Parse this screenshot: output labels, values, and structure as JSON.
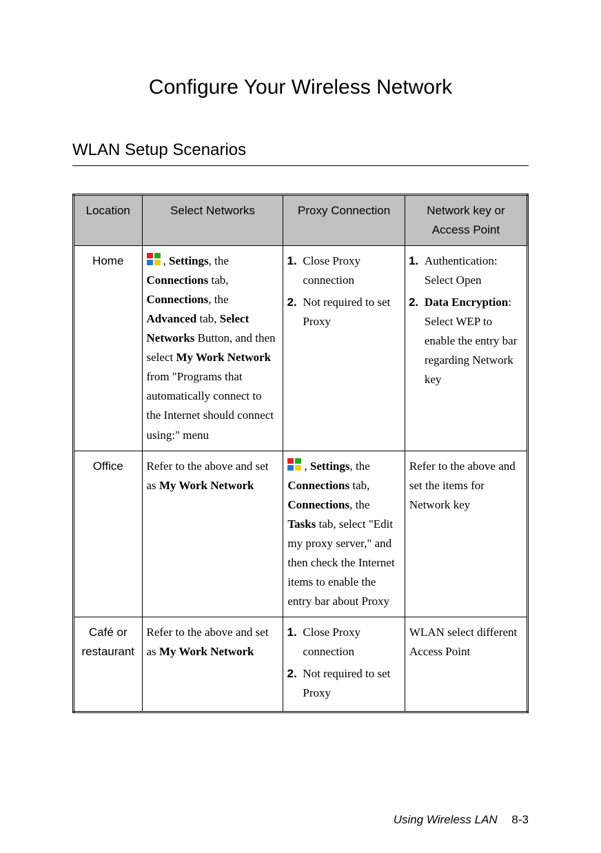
{
  "page": {
    "title": "Configure Your Wireless Network",
    "subtitle": "WLAN Setup Scenarios",
    "footer_text": "Using Wireless LAN",
    "footer_page": "8-3"
  },
  "table": {
    "headers": {
      "location": "Location",
      "select_networks": "Select Networks",
      "proxy": "Proxy Connection",
      "netkey": "Network key or Access Point"
    },
    "rows": {
      "home": {
        "location": "Home",
        "select_prefix": ", ",
        "select_b1": "Settings",
        "select_t1": ", the ",
        "select_b2": "Connections",
        "select_t2": " tab, ",
        "select_b3": "Connections",
        "select_t3": ", the ",
        "select_b4": "Advanced",
        "select_t4": " tab, ",
        "select_b5": "Select Networks",
        "select_t5": " Button, and then select ",
        "select_b6": "My Work Network",
        "select_t6": " from \"Programs that automatically connect to the Internet should connect using:\" menu",
        "proxy_li1": "Close Proxy connection",
        "proxy_li2": "Not required to set Proxy",
        "net_li1_a": "Authentication: Select Open",
        "net_li2_b": "Data Encryption",
        "net_li2_t": ": Select WEP to enable the entry bar regarding Network key"
      },
      "office": {
        "location": "Office",
        "select_t0": "Refer to the above and set as ",
        "select_b1": "My Work Network",
        "proxy_prefix": ", ",
        "proxy_b1": "Settings",
        "proxy_t1": ", the ",
        "proxy_b2": "Connections",
        "proxy_t2": " tab, ",
        "proxy_b3": "Connections",
        "proxy_t3": ", the ",
        "proxy_b4": "Tasks",
        "proxy_t4": " tab, select \"Edit my proxy server,\" and then check the Internet items to enable the entry bar about Proxy",
        "net_t": "Refer to the above and set the items for Network key"
      },
      "cafe": {
        "location": "Café or restaurant",
        "select_t0": "Refer to the above and set as ",
        "select_b1": "My Work Network",
        "proxy_li1": "Close Proxy connection",
        "proxy_li2": "Not required to set Proxy",
        "net_t": "WLAN select different Access Point"
      }
    }
  }
}
